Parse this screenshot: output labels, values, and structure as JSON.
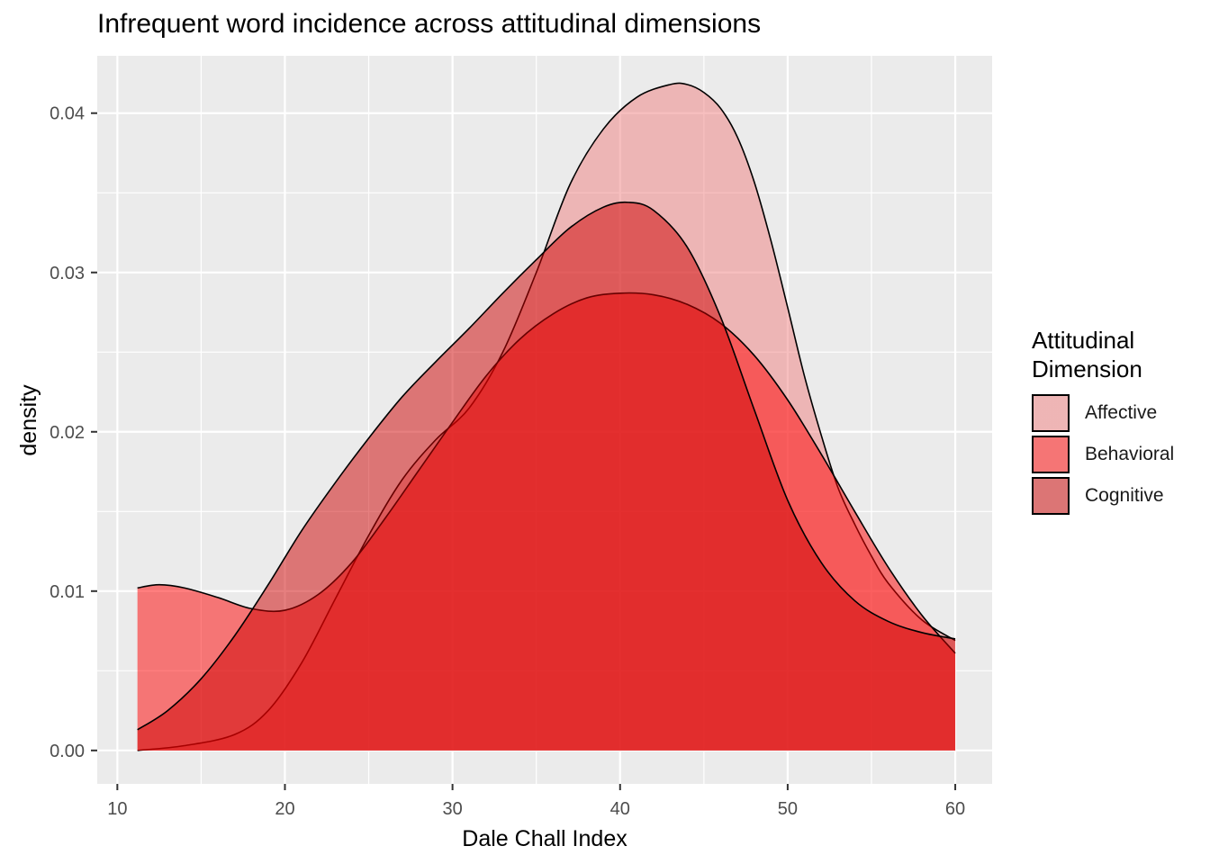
{
  "chart_data": {
    "type": "area",
    "title": "Infrequent word incidence across attitudinal dimensions",
    "xlabel": "Dale Chall Index",
    "ylabel": "density",
    "xlim": [
      8.8,
      62.2
    ],
    "ylim": [
      -0.0021,
      0.0436
    ],
    "x_ticks": [
      10,
      20,
      30,
      40,
      50,
      60
    ],
    "y_ticks": [
      0.0,
      0.01,
      0.02,
      0.03,
      0.04
    ],
    "x_tick_labels": [
      "10",
      "20",
      "30",
      "40",
      "50",
      "60"
    ],
    "y_tick_labels": [
      "0.00",
      "0.01",
      "0.02",
      "0.03",
      "0.04"
    ],
    "grid": true,
    "legend_title": [
      "Attitudinal",
      "Dimension"
    ],
    "legend_position": "right",
    "series": [
      {
        "name": "Affective",
        "color": "#F08080",
        "x": [
          11.2,
          14,
          17,
          19,
          21,
          23,
          25,
          27,
          29,
          31,
          33,
          35,
          37,
          39,
          41,
          43,
          44,
          45,
          46,
          47,
          48,
          49,
          50,
          51,
          52,
          53,
          54,
          55,
          56,
          58,
          60
        ],
        "y": [
          0.0,
          0.0003,
          0.001,
          0.0025,
          0.0055,
          0.0095,
          0.0135,
          0.017,
          0.0195,
          0.0215,
          0.025,
          0.03,
          0.0355,
          0.039,
          0.041,
          0.0418,
          0.0418,
          0.0413,
          0.0403,
          0.0385,
          0.0357,
          0.032,
          0.0278,
          0.0235,
          0.0198,
          0.0165,
          0.0142,
          0.0122,
          0.0105,
          0.0082,
          0.0069
        ]
      },
      {
        "name": "Behavioral",
        "color": "#FF0000",
        "x": [
          11.2,
          12.5,
          14,
          16,
          18,
          20,
          22,
          24,
          26,
          28,
          30,
          32,
          34,
          36,
          38,
          40,
          42,
          44,
          46,
          48,
          50,
          52,
          54,
          56,
          58,
          60
        ],
        "y": [
          0.0102,
          0.0104,
          0.0102,
          0.0096,
          0.0089,
          0.0088,
          0.0098,
          0.0118,
          0.0146,
          0.0176,
          0.0206,
          0.0235,
          0.0258,
          0.0274,
          0.0284,
          0.0287,
          0.0286,
          0.028,
          0.0268,
          0.0248,
          0.022,
          0.0186,
          0.015,
          0.0115,
          0.0085,
          0.0061
        ]
      },
      {
        "name": "Cognitive",
        "color": "#CD0000",
        "x": [
          11.2,
          13,
          15,
          17,
          19,
          21,
          23,
          25,
          27,
          29,
          31,
          33,
          35,
          37,
          39,
          40.5,
          42,
          44,
          46,
          48,
          50,
          52,
          54,
          56,
          58,
          60
        ],
        "y": [
          0.0013,
          0.0025,
          0.0045,
          0.0072,
          0.0104,
          0.0138,
          0.0168,
          0.0196,
          0.0222,
          0.0244,
          0.0265,
          0.0287,
          0.0308,
          0.0328,
          0.0341,
          0.0344,
          0.0339,
          0.0316,
          0.0272,
          0.0214,
          0.0157,
          0.0118,
          0.0094,
          0.0081,
          0.0074,
          0.007
        ]
      }
    ]
  }
}
